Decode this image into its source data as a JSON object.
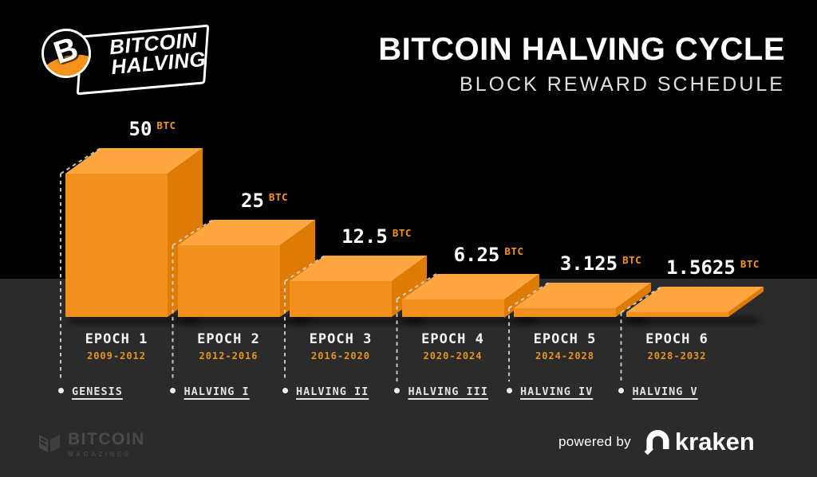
{
  "header": {
    "logo": {
      "badge_line1": "BITCOIN",
      "badge_line2": "HALVING",
      "coin_symbol": "B"
    },
    "title": "BITCOIN HALVING CYCLE",
    "subtitle": "BLOCK REWARD SCHEDULE"
  },
  "chart_data": {
    "type": "bar",
    "title": "BITCOIN HALVING CYCLE",
    "subtitle": "BLOCK REWARD SCHEDULE",
    "unit": "BTC",
    "categories": [
      "EPOCH 1",
      "EPOCH 2",
      "EPOCH 3",
      "EPOCH 4",
      "EPOCH 5",
      "EPOCH 6"
    ],
    "year_ranges": [
      "2009-2012",
      "2012-2016",
      "2016-2020",
      "2020-2024",
      "2024-2028",
      "2028-2032"
    ],
    "values": [
      50,
      25,
      12.5,
      6.25,
      3.125,
      1.5625
    ],
    "value_labels": [
      "50",
      "25",
      "12.5",
      "6.25",
      "3.125",
      "1.5625"
    ],
    "milestones": [
      "GENESIS",
      "HALVING I",
      "HALVING II",
      "HALVING III",
      "HALVING IV",
      "HALVING V"
    ],
    "ylim": [
      0,
      50
    ],
    "grid": false,
    "legend": false,
    "colors": {
      "bar_front": "#F2901E",
      "bar_top": "#FFA640",
      "bar_side": "#DE7B05",
      "accent_orange": "#F7931A",
      "years_orange": "#E8921F",
      "guide_line": "#D6D6D6",
      "bg_top": "#000000",
      "bg_bottom": "#2B2B2B"
    }
  },
  "footer": {
    "magazine": {
      "name": "BITCOIN",
      "sub": "MAGAZINE®"
    },
    "powered_by": "powered by",
    "brand": "kraken"
  }
}
